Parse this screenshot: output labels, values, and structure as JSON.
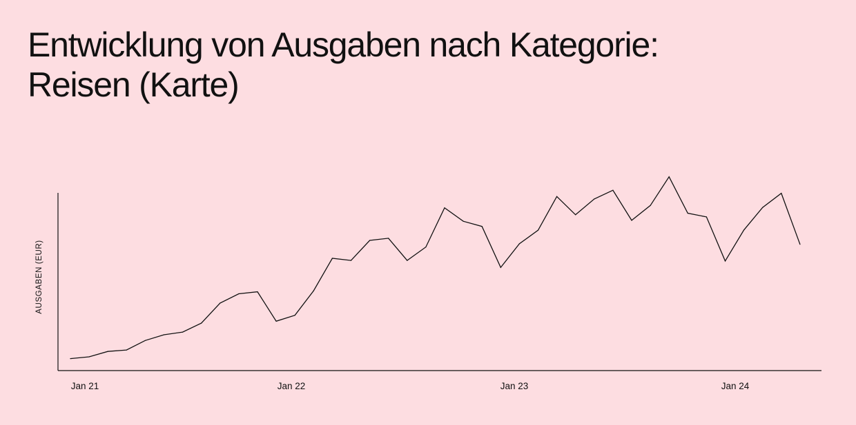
{
  "title": {
    "line1": "Entwicklung von Ausgaben nach Kategorie:",
    "line2": "Reisen (Karte)"
  },
  "colors": {
    "background": "#fddde1",
    "line": "#111111",
    "text": "#111111"
  },
  "chart_data": {
    "type": "line",
    "title": "Entwicklung von Ausgaben nach Kategorie: Reisen (Karte)",
    "xlabel": "",
    "ylabel": "AUSGABEN (EUR)",
    "grid": false,
    "y_ticks_shown": false,
    "ylim": [
      0,
      100
    ],
    "x_ticks": [
      "Jan 21",
      "Jan 22",
      "Jan 23",
      "Jan 24"
    ],
    "x": [
      "2021-01",
      "2021-02",
      "2021-03",
      "2021-04",
      "2021-05",
      "2021-06",
      "2021-07",
      "2021-08",
      "2021-09",
      "2021-10",
      "2021-11",
      "2021-12",
      "2022-01",
      "2022-02",
      "2022-03",
      "2022-04",
      "2022-05",
      "2022-06",
      "2022-07",
      "2022-08",
      "2022-09",
      "2022-10",
      "2022-11",
      "2022-12",
      "2023-01",
      "2023-02",
      "2023-03",
      "2023-04",
      "2023-05",
      "2023-06",
      "2023-07",
      "2023-08",
      "2023-09",
      "2023-10",
      "2023-11",
      "2023-12",
      "2024-01",
      "2024-02",
      "2024-03",
      "2024-04"
    ],
    "series": [
      {
        "values": [
          6.5,
          7.5,
          10.5,
          11.3,
          16.6,
          19.8,
          21.3,
          26.3,
          37.5,
          42.7,
          43.8,
          27.4,
          30.7,
          44.4,
          62.5,
          61.3,
          72.5,
          73.7,
          61.3,
          68.8,
          90.7,
          83.2,
          80.3,
          57.4,
          70.6,
          78.2,
          97.0,
          86.8,
          95.6,
          100.5,
          83.7,
          92.0,
          108.0,
          87.7,
          85.6,
          61.0,
          78.3,
          90.9,
          98.8,
          70.3
        ]
      }
    ]
  }
}
